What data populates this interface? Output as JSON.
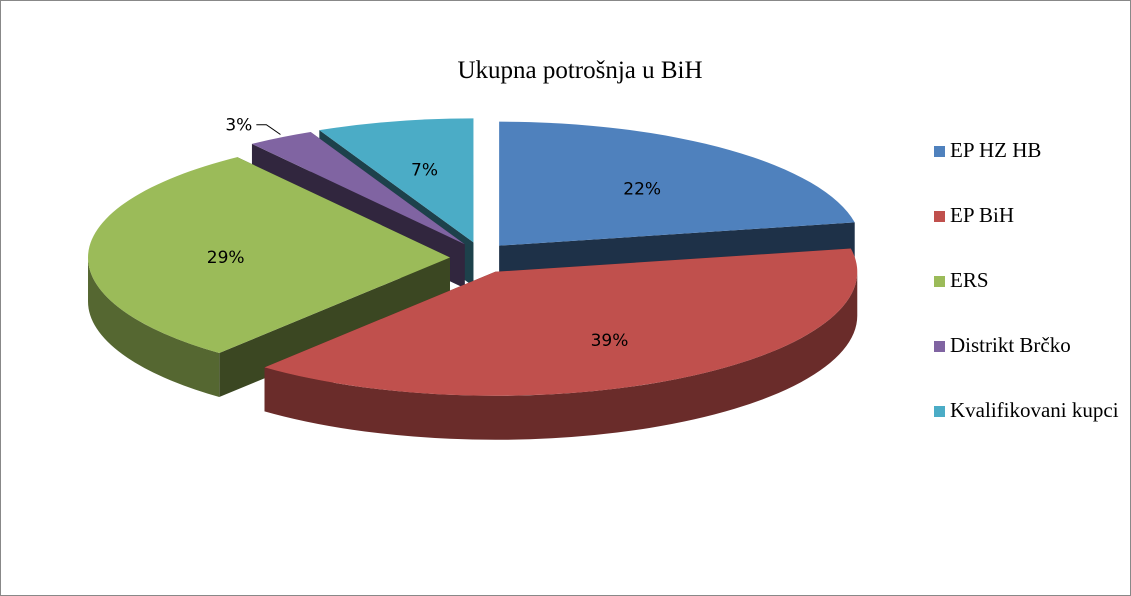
{
  "chart_data": {
    "type": "pie",
    "title": "Ukupna potrošnja u BiH",
    "categories": [
      "EP HZ HB",
      "EP BiH",
      "ERS",
      "Distrikt Brčko",
      "Kvalifikovani kupci"
    ],
    "values": [
      22,
      39,
      29,
      3,
      7
    ],
    "value_labels": [
      "22%",
      "39%",
      "29%",
      "3%",
      "7%"
    ],
    "colors": [
      "#4f81bd",
      "#c0504d",
      "#9bbb59",
      "#8064a2",
      "#4bacc6"
    ],
    "legend": "right"
  }
}
